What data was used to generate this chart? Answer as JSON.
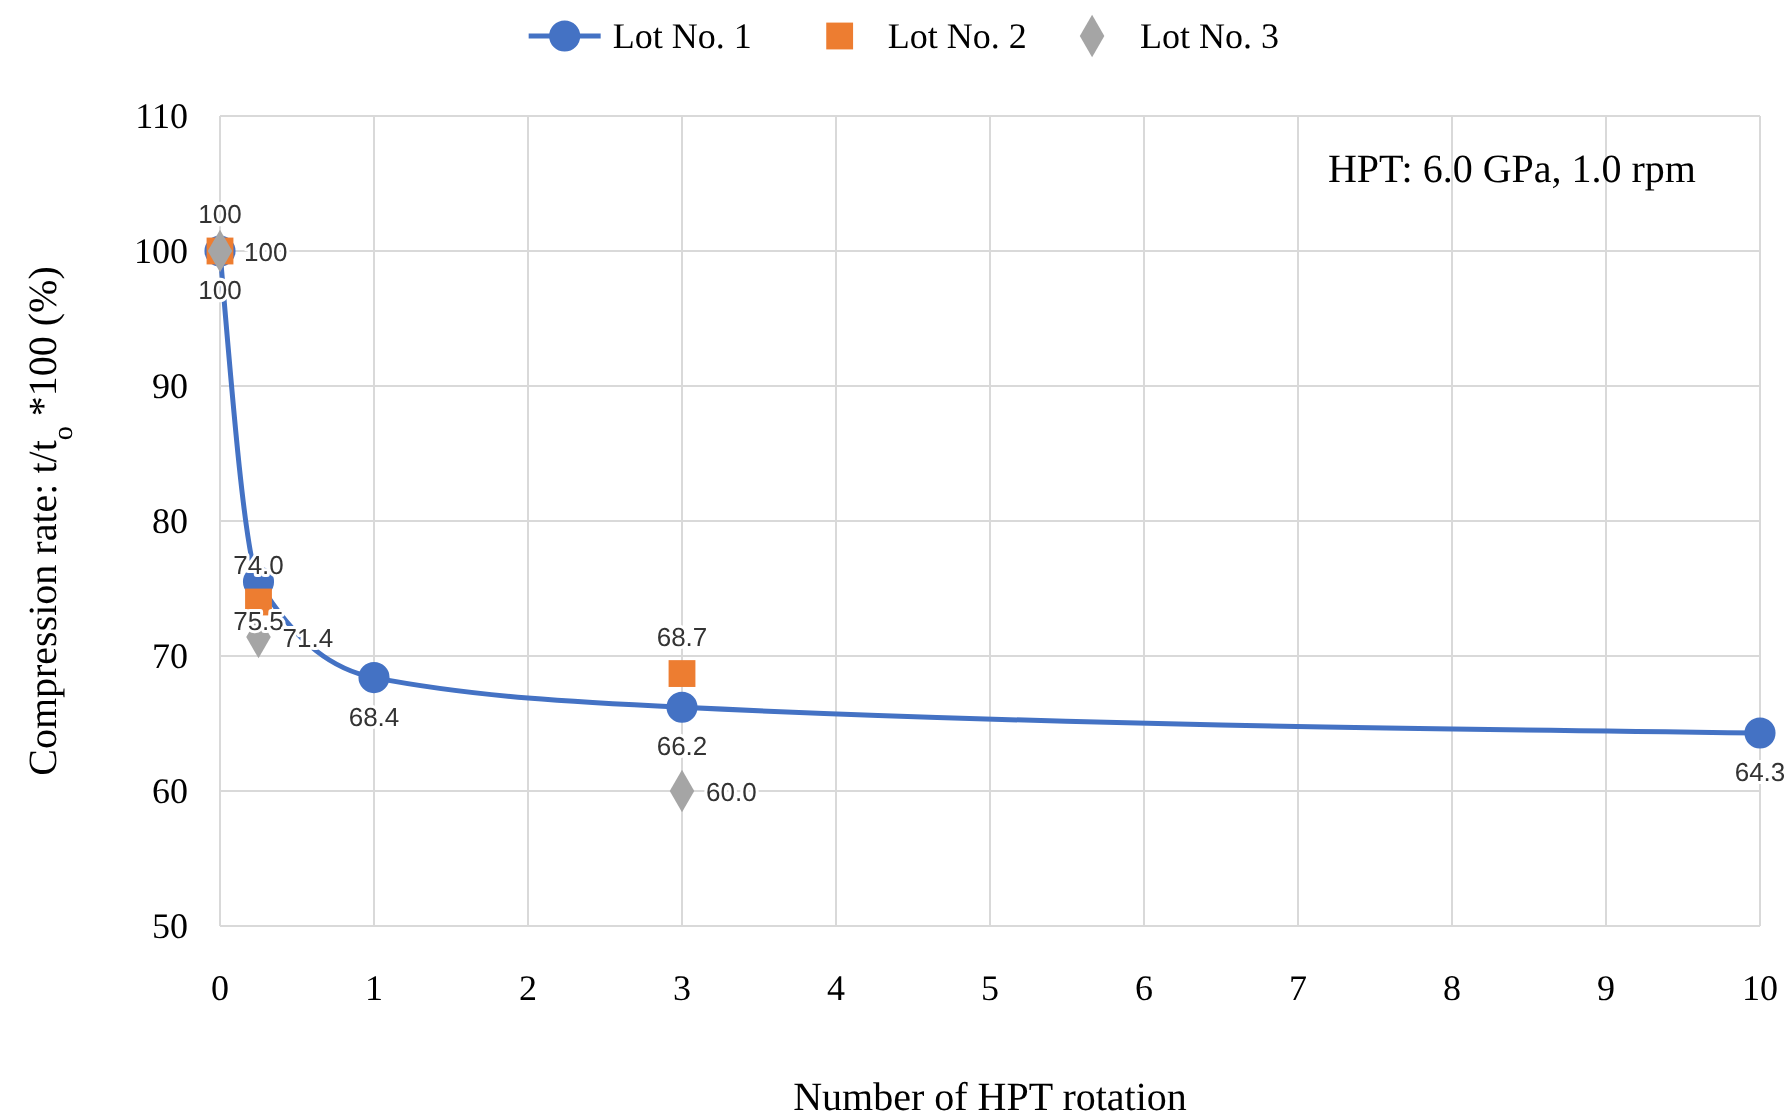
{
  "chart_data": {
    "type": "line",
    "xlabel": "Number of HPT rotation",
    "ylabel": "Compression rate: t/t$_{o}$ *100  (%)",
    "xlim": [
      0,
      10
    ],
    "xticks": [
      0,
      1,
      2,
      3,
      4,
      5,
      6,
      7,
      8,
      9,
      10
    ],
    "ylim": [
      50,
      110
    ],
    "yticks": [
      50,
      60,
      70,
      80,
      90,
      100,
      110
    ],
    "grid": true,
    "legend": "top",
    "annotations": [
      "HPT: 6.0 GPa, 1.0 rpm"
    ],
    "series": [
      {
        "name": "Lot No. 1",
        "marker": "circle",
        "color": "#4472c4",
        "x": [
          0,
          0.25,
          1,
          3,
          10
        ],
        "values": [
          100,
          75.5,
          68.4,
          66.2,
          64.3
        ],
        "value_labels": [
          "100",
          "75.5",
          "68.4",
          "66.2",
          "64.3"
        ]
      },
      {
        "name": "Lot No. 2",
        "type": "scatter",
        "marker": "square",
        "color": "#ed7d31",
        "x": [
          0,
          0.25,
          3
        ],
        "values": [
          100,
          74.0,
          68.7
        ],
        "value_labels": [
          "100",
          "74.0",
          "68.7"
        ]
      },
      {
        "name": "Lot No. 3",
        "type": "scatter",
        "marker": "diamond",
        "color": "#a5a5a5",
        "x": [
          0,
          0.25,
          3
        ],
        "values": [
          100,
          71.4,
          60.0
        ],
        "value_labels": [
          "100",
          "71.4",
          "60.0"
        ]
      }
    ]
  }
}
